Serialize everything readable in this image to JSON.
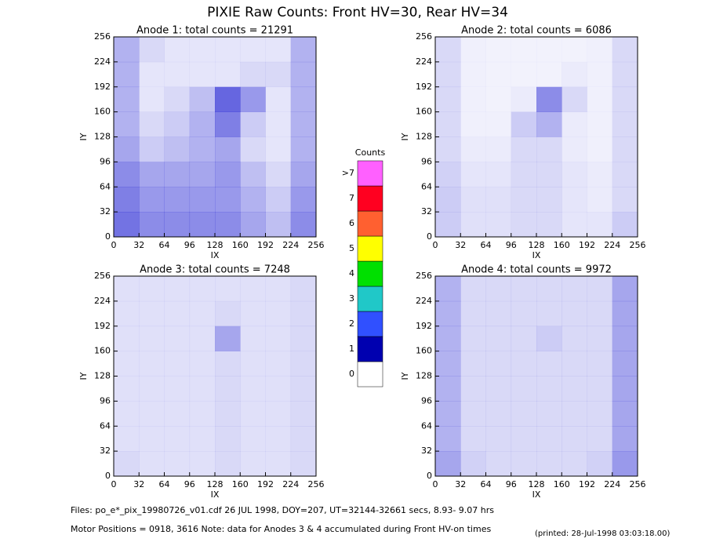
{
  "title": "PIXIE Raw Counts:  Front HV=30, Rear HV=34",
  "chart_data": [
    {
      "type": "density",
      "title": "Anode 1: total counts = 21291",
      "x_label": "IX",
      "y_label": "IY",
      "xlim": [
        0,
        256
      ],
      "ylim": [
        0,
        256
      ],
      "xticks": [
        0,
        32,
        64,
        96,
        128,
        160,
        192,
        224,
        256
      ],
      "yticks": [
        0,
        32,
        64,
        96,
        128,
        160,
        192,
        224,
        256
      ],
      "color": "#0000cc",
      "density": [
        [
          0.3,
          0.15,
          0.1,
          0.1,
          0.1,
          0.1,
          0.1,
          0.3
        ],
        [
          0.3,
          0.1,
          0.1,
          0.1,
          0.1,
          0.15,
          0.15,
          0.3
        ],
        [
          0.3,
          0.1,
          0.15,
          0.25,
          0.6,
          0.4,
          0.1,
          0.3
        ],
        [
          0.3,
          0.15,
          0.2,
          0.3,
          0.5,
          0.2,
          0.1,
          0.3
        ],
        [
          0.35,
          0.2,
          0.25,
          0.3,
          0.35,
          0.15,
          0.1,
          0.3
        ],
        [
          0.45,
          0.35,
          0.35,
          0.35,
          0.4,
          0.25,
          0.15,
          0.35
        ],
        [
          0.5,
          0.4,
          0.4,
          0.4,
          0.4,
          0.3,
          0.2,
          0.4
        ],
        [
          0.55,
          0.45,
          0.45,
          0.45,
          0.45,
          0.35,
          0.25,
          0.45
        ]
      ]
    },
    {
      "type": "density",
      "title": "Anode 2: total counts = 6086",
      "x_label": "IX",
      "y_label": "IY",
      "xlim": [
        0,
        256
      ],
      "ylim": [
        0,
        256
      ],
      "xticks": [
        0,
        32,
        64,
        96,
        128,
        160,
        192,
        224,
        256
      ],
      "yticks": [
        0,
        32,
        64,
        96,
        128,
        160,
        192,
        224,
        256
      ],
      "color": "#0000cc",
      "density": [
        [
          0.15,
          0.06,
          0.05,
          0.05,
          0.05,
          0.05,
          0.06,
          0.15
        ],
        [
          0.15,
          0.06,
          0.05,
          0.05,
          0.05,
          0.08,
          0.06,
          0.15
        ],
        [
          0.15,
          0.06,
          0.05,
          0.08,
          0.45,
          0.15,
          0.06,
          0.15
        ],
        [
          0.15,
          0.06,
          0.06,
          0.2,
          0.3,
          0.08,
          0.06,
          0.15
        ],
        [
          0.15,
          0.08,
          0.08,
          0.15,
          0.15,
          0.08,
          0.06,
          0.15
        ],
        [
          0.18,
          0.1,
          0.1,
          0.15,
          0.15,
          0.1,
          0.08,
          0.15
        ],
        [
          0.2,
          0.12,
          0.12,
          0.15,
          0.15,
          0.1,
          0.08,
          0.15
        ],
        [
          0.2,
          0.12,
          0.12,
          0.15,
          0.15,
          0.1,
          0.1,
          0.2
        ]
      ]
    },
    {
      "type": "density",
      "title": "Anode 3: total counts = 7248",
      "x_label": "IX",
      "y_label": "IY",
      "xlim": [
        0,
        256
      ],
      "ylim": [
        0,
        256
      ],
      "xticks": [
        0,
        32,
        64,
        96,
        128,
        160,
        192,
        224,
        256
      ],
      "yticks": [
        0,
        32,
        64,
        96,
        128,
        160,
        192,
        224,
        256
      ],
      "color": "#0000cc",
      "density": [
        [
          0.12,
          0.12,
          0.12,
          0.12,
          0.12,
          0.12,
          0.12,
          0.15
        ],
        [
          0.12,
          0.12,
          0.12,
          0.12,
          0.15,
          0.12,
          0.12,
          0.15
        ],
        [
          0.12,
          0.12,
          0.12,
          0.12,
          0.35,
          0.12,
          0.12,
          0.15
        ],
        [
          0.12,
          0.12,
          0.12,
          0.12,
          0.15,
          0.12,
          0.12,
          0.15
        ],
        [
          0.12,
          0.12,
          0.12,
          0.12,
          0.15,
          0.12,
          0.12,
          0.15
        ],
        [
          0.12,
          0.12,
          0.12,
          0.12,
          0.15,
          0.12,
          0.12,
          0.15
        ],
        [
          0.12,
          0.12,
          0.12,
          0.12,
          0.15,
          0.12,
          0.12,
          0.15
        ],
        [
          0.15,
          0.12,
          0.12,
          0.12,
          0.15,
          0.12,
          0.12,
          0.15
        ]
      ]
    },
    {
      "type": "density",
      "title": "Anode 4: total counts = 9972",
      "x_label": "IX",
      "y_label": "IY",
      "xlim": [
        0,
        256
      ],
      "ylim": [
        0,
        256
      ],
      "xticks": [
        0,
        32,
        64,
        96,
        128,
        160,
        192,
        224,
        256
      ],
      "yticks": [
        0,
        32,
        64,
        96,
        128,
        160,
        192,
        224,
        256
      ],
      "color": "#0000cc",
      "density": [
        [
          0.3,
          0.15,
          0.15,
          0.15,
          0.15,
          0.15,
          0.15,
          0.35
        ],
        [
          0.3,
          0.15,
          0.15,
          0.15,
          0.15,
          0.15,
          0.15,
          0.35
        ],
        [
          0.3,
          0.15,
          0.15,
          0.15,
          0.2,
          0.15,
          0.15,
          0.35
        ],
        [
          0.3,
          0.15,
          0.15,
          0.15,
          0.15,
          0.15,
          0.15,
          0.35
        ],
        [
          0.3,
          0.15,
          0.15,
          0.15,
          0.15,
          0.15,
          0.15,
          0.35
        ],
        [
          0.3,
          0.15,
          0.15,
          0.15,
          0.15,
          0.15,
          0.15,
          0.35
        ],
        [
          0.3,
          0.15,
          0.15,
          0.15,
          0.15,
          0.15,
          0.15,
          0.35
        ],
        [
          0.35,
          0.18,
          0.15,
          0.15,
          0.15,
          0.15,
          0.18,
          0.4
        ]
      ]
    }
  ],
  "colorbar": {
    "title": "Counts",
    "levels": [
      0,
      1,
      2,
      3,
      4,
      5,
      6,
      7,
      {
        "value": 8,
        "label": ">7"
      }
    ],
    "colors": [
      "#ffffff",
      "#0000b0",
      "#3050ff",
      "#20c8c8",
      "#00e000",
      "#ffff00",
      "#ff6030",
      "#ff0020",
      "#ff60ff"
    ]
  },
  "footer": [
    "Files: po_e*_pix_19980726_v01.cdf    26 JUL 1998, DOY=207, UT=32144-32661 secs,  8.93- 9.07 hrs",
    "Motor Positions = 0918, 3616    Note: data for Anodes 3 & 4 accumulated during Front HV-on times"
  ],
  "printed": "(printed: 28-Jul-1998 03:03:18.00)"
}
